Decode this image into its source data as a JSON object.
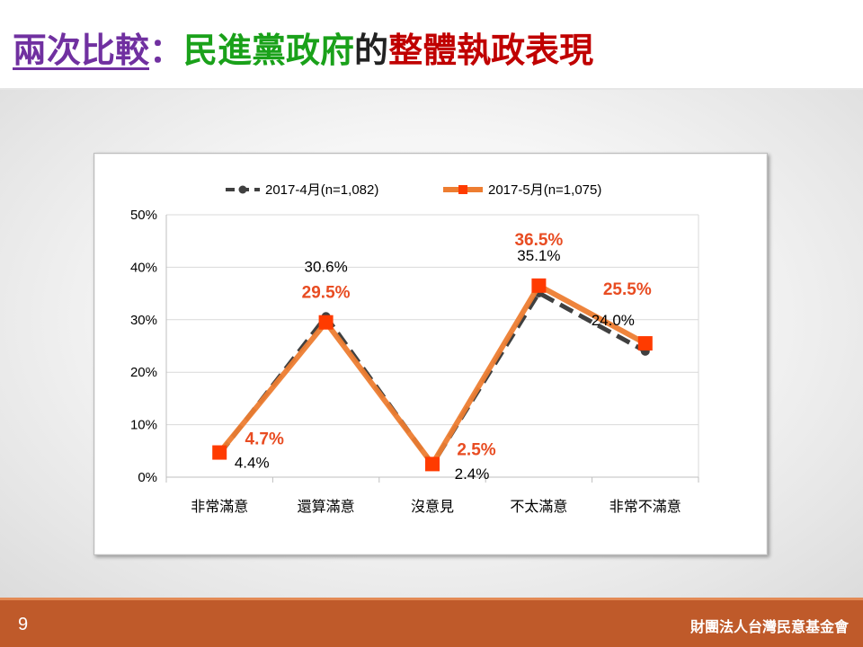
{
  "title": {
    "part_a": "兩次比較",
    "part_b": "：",
    "part_c": "民進黨政府",
    "part_d": "的",
    "part_e": "整體執政表現"
  },
  "footer": {
    "page_number": "9",
    "organization": "財團法人台灣民意基金會"
  },
  "colors": {
    "series1": "#404040",
    "series2": "#ed7d31",
    "series2_marker": "#ff3b00",
    "series2_label": "#e84c22",
    "footer": "#bf5a2a",
    "title_purple": "#7030a0",
    "title_green": "#1aa11a",
    "title_red": "#c00000"
  },
  "chart_data": {
    "type": "line",
    "categories": [
      "非常滿意",
      "還算滿意",
      "沒意見",
      "不太滿意",
      "非常不滿意"
    ],
    "series": [
      {
        "name": "2017-4月(n=1,082)",
        "values": [
          4.4,
          30.6,
          2.4,
          35.1,
          24.0
        ],
        "labels": [
          "4.4%",
          "30.6%",
          "2.4%",
          "35.1%",
          "24.0%"
        ],
        "style": "dashed",
        "marker": "circle"
      },
      {
        "name": "2017-5月(n=1,075)",
        "values": [
          4.7,
          29.5,
          2.5,
          36.5,
          25.5
        ],
        "labels": [
          "4.7%",
          "29.5%",
          "2.5%",
          "36.5%",
          "25.5%"
        ],
        "style": "solid",
        "marker": "square"
      }
    ],
    "ylim": [
      0,
      50
    ],
    "yticks": [
      "0%",
      "10%",
      "20%",
      "30%",
      "40%",
      "50%"
    ],
    "grid": true,
    "legend": "top"
  }
}
